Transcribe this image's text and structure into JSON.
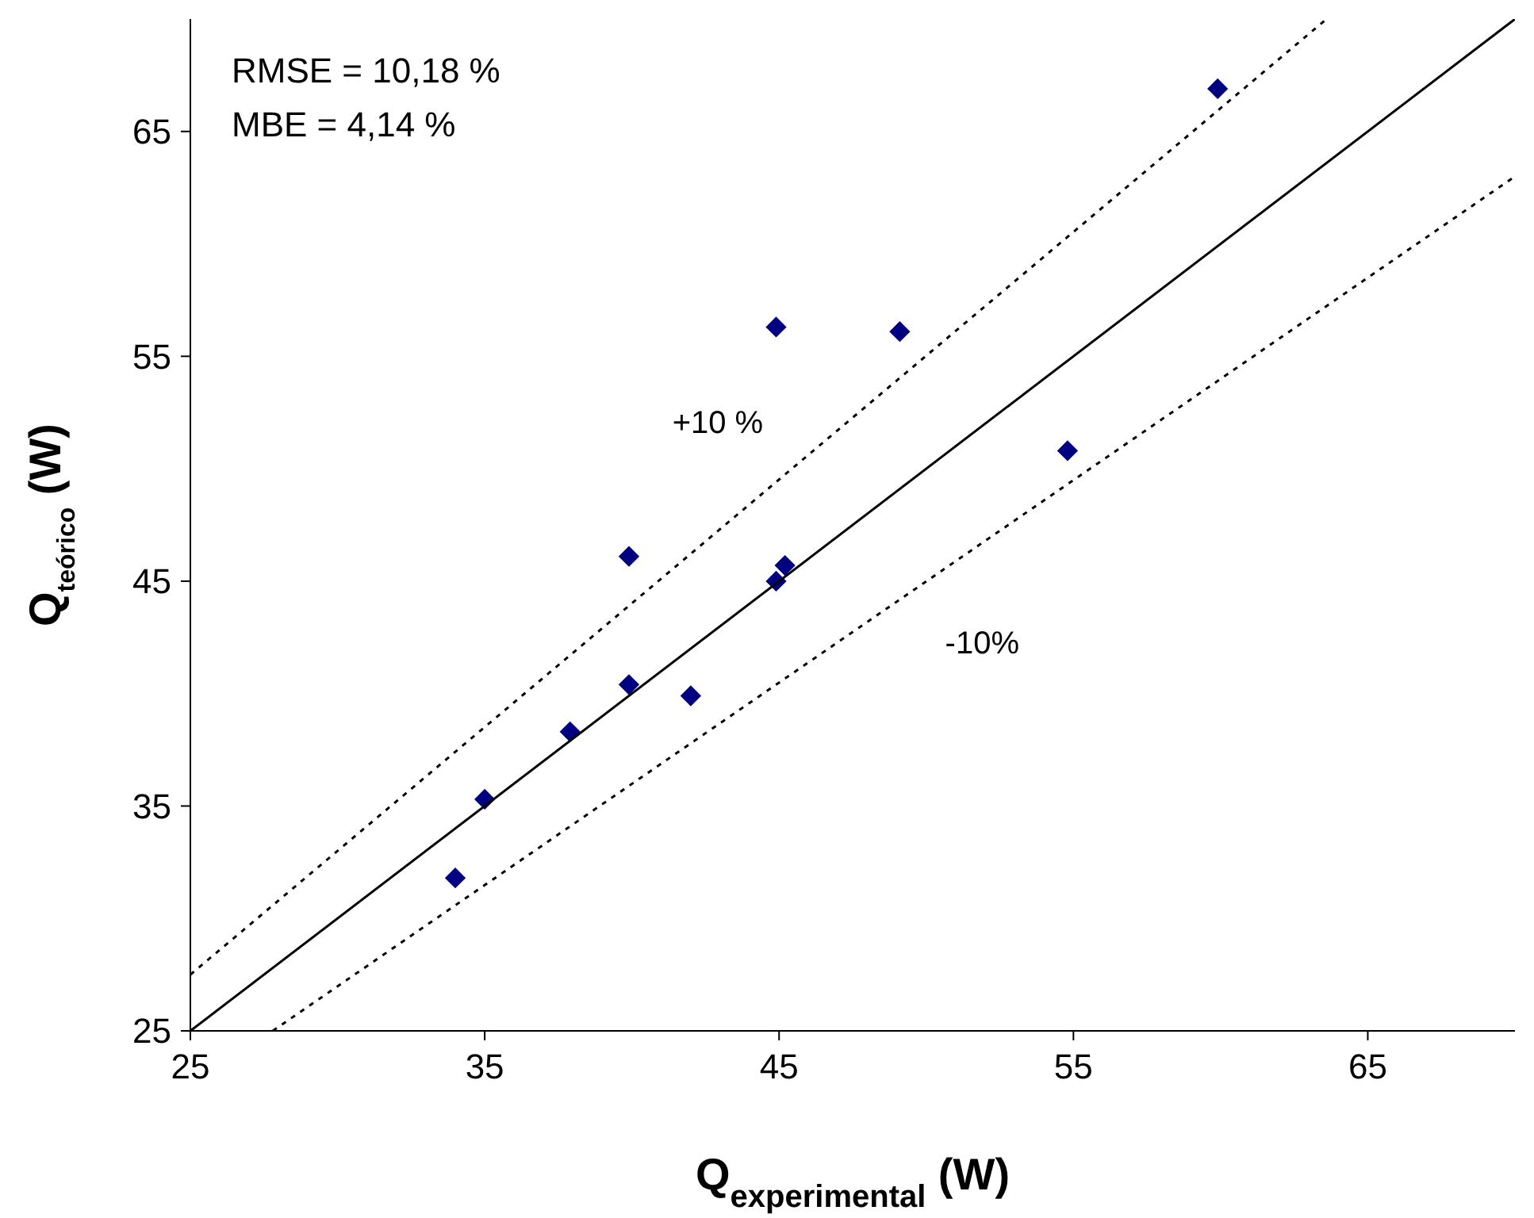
{
  "chart_data": {
    "type": "scatter",
    "xlabel": "Q$_{experimental}$ (W)",
    "ylabel": "Q$_{teórico}$ (W)",
    "xlim": [
      25,
      70
    ],
    "ylim": [
      25,
      70
    ],
    "xticks": [
      25,
      35,
      45,
      55,
      65
    ],
    "yticks": [
      25,
      35,
      45,
      55,
      65
    ],
    "grid": false,
    "series": [
      {
        "marker": "diamond",
        "color": "#000080",
        "x": [
          34,
          35,
          37.9,
          39.9,
          39.9,
          42,
          44.9,
          45.2,
          44.9,
          49.1,
          54.8,
          59.9
        ],
        "values": [
          31.8,
          35.3,
          38.3,
          40.4,
          46.1,
          39.9,
          45,
          45.7,
          56.3,
          56.1,
          50.8,
          66.9
        ]
      },
      {
        "type": "line",
        "color": "#000000",
        "line_style": "solid",
        "x": [
          25,
          70
        ],
        "values": [
          25,
          70
        ]
      },
      {
        "type": "line",
        "name": "+10 %",
        "color": "#000000",
        "line_style": "dotted",
        "x": [
          25,
          63.6
        ],
        "values": [
          27.5,
          70
        ]
      },
      {
        "type": "line",
        "name": "-10%",
        "color": "#000000",
        "line_style": "dotted",
        "x": [
          27.8,
          70
        ],
        "values": [
          25,
          63
        ]
      }
    ],
    "annotations": [
      "RMSE = 10,18 %",
      "MBE = 4,14 %"
    ]
  }
}
